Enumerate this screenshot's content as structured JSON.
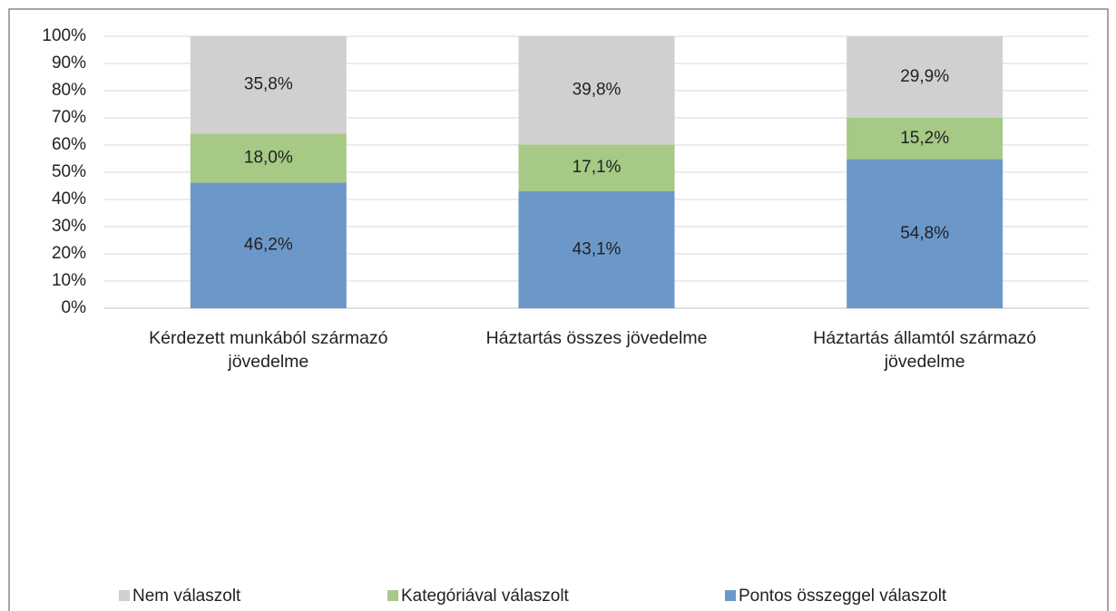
{
  "chart_data": {
    "type": "stacked_bar",
    "categories": [
      "Kérdezett munkából származó jövedelme",
      "Háztartás összes jövedelme",
      "Háztartás államtól származó jövedelme"
    ],
    "series": [
      {
        "name": "Nem válaszolt",
        "color": "#d0d0d0",
        "values": [
          35.8,
          39.8,
          29.9
        ],
        "value_labels": [
          "35,8%",
          "39,8%",
          "29,9%"
        ]
      },
      {
        "name": "Kategóriával válaszolt",
        "color": "#a6c985",
        "values": [
          18.0,
          17.1,
          15.2
        ],
        "value_labels": [
          "18,0%",
          "17,1%",
          "15,2%"
        ]
      },
      {
        "name": "Pontos összeggel válaszolt",
        "color": "#6b98c9",
        "values": [
          46.2,
          43.1,
          54.8
        ],
        "value_labels": [
          "46,2%",
          "43,1%",
          "54,8%"
        ]
      }
    ],
    "stack_order": "bottom_up_reverse_of_legend",
    "ylim": [
      0,
      100
    ],
    "yticks": [
      {
        "value": 0,
        "label": "0%"
      },
      {
        "value": 10,
        "label": "10%"
      },
      {
        "value": 20,
        "label": "20%"
      },
      {
        "value": 30,
        "label": "30%"
      },
      {
        "value": 40,
        "label": "40%"
      },
      {
        "value": 50,
        "label": "50%"
      },
      {
        "value": 60,
        "label": "60%"
      },
      {
        "value": 70,
        "label": "70%"
      },
      {
        "value": 80,
        "label": "80%"
      },
      {
        "value": 90,
        "label": "90%"
      },
      {
        "value": 100,
        "label": "100%"
      }
    ],
    "grid": true,
    "legend": "bottom"
  }
}
